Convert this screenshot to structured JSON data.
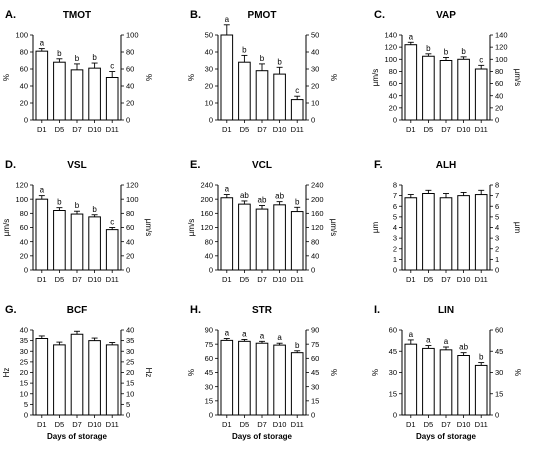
{
  "chart_data": [
    {
      "panel": "A.",
      "title": "TMOT",
      "type": "bar",
      "categories": [
        "D1",
        "D5",
        "D7",
        "D10",
        "D11"
      ],
      "values": [
        81,
        68,
        59,
        61,
        50
      ],
      "errors": [
        3,
        4,
        7,
        6,
        7
      ],
      "letters": [
        "a",
        "b",
        "b",
        "b",
        "c"
      ],
      "ylabel": "%",
      "ylabel_right": "%",
      "ylim": [
        0,
        100
      ],
      "yticks": [
        0,
        20,
        40,
        60,
        80,
        100
      ],
      "xlabel": ""
    },
    {
      "panel": "B.",
      "title": "PMOT",
      "type": "bar",
      "categories": [
        "D1",
        "D5",
        "D7",
        "D10",
        "D11"
      ],
      "values": [
        50,
        34,
        29,
        27,
        12
      ],
      "errors": [
        6,
        4,
        4,
        4,
        2
      ],
      "letters": [
        "a",
        "b",
        "b",
        "b",
        "c"
      ],
      "ylabel": "%",
      "ylabel_right": "%",
      "ylim": [
        0,
        50
      ],
      "yticks": [
        0,
        10,
        20,
        30,
        40,
        50
      ],
      "xlabel": ""
    },
    {
      "panel": "C.",
      "title": "VAP",
      "type": "bar",
      "categories": [
        "D1",
        "D5",
        "D7",
        "D10",
        "D11"
      ],
      "values": [
        124,
        105,
        98,
        100,
        84
      ],
      "errors": [
        4,
        4,
        5,
        4,
        6
      ],
      "letters": [
        "a",
        "b",
        "b",
        "b",
        "c"
      ],
      "ylabel": "µm/s",
      "ylabel_right": "µm/s",
      "ylim": [
        0,
        140
      ],
      "yticks": [
        0,
        20,
        40,
        60,
        80,
        100,
        120,
        140
      ],
      "xlabel": ""
    },
    {
      "panel": "D.",
      "title": "VSL",
      "type": "bar",
      "categories": [
        "D1",
        "D5",
        "D7",
        "D10",
        "D11"
      ],
      "values": [
        100,
        84,
        79,
        75,
        57
      ],
      "errors": [
        5,
        4,
        4,
        3,
        3
      ],
      "letters": [
        "a",
        "b",
        "b",
        "b",
        "c"
      ],
      "ylabel": "µm/s",
      "ylabel_right": "µm/s",
      "ylim": [
        0,
        120
      ],
      "yticks": [
        0,
        20,
        40,
        60,
        80,
        100,
        120
      ],
      "xlabel": ""
    },
    {
      "panel": "E.",
      "title": "VCL",
      "type": "bar",
      "categories": [
        "D1",
        "D5",
        "D7",
        "D10",
        "D11"
      ],
      "values": [
        204,
        186,
        172,
        184,
        165
      ],
      "errors": [
        9,
        9,
        10,
        9,
        12
      ],
      "letters": [
        "a",
        "ab",
        "ab",
        "ab",
        "b"
      ],
      "ylabel": "µm/s",
      "ylabel_right": "µm/s",
      "ylim": [
        0,
        240
      ],
      "yticks": [
        0,
        40,
        80,
        120,
        160,
        200,
        240
      ],
      "xlabel": ""
    },
    {
      "panel": "F.",
      "title": "ALH",
      "type": "bar",
      "categories": [
        "D1",
        "D5",
        "D7",
        "D10",
        "D11"
      ],
      "values": [
        6.8,
        7.2,
        6.8,
        7.0,
        7.1
      ],
      "errors": [
        0.3,
        0.3,
        0.4,
        0.3,
        0.4
      ],
      "letters": [
        "",
        "",
        "",
        "",
        ""
      ],
      "ylabel": "µm",
      "ylabel_right": "µm",
      "ylim": [
        0,
        8
      ],
      "yticks": [
        0,
        1,
        2,
        3,
        4,
        5,
        6,
        7,
        8
      ],
      "xlabel": ""
    },
    {
      "panel": "G.",
      "title": "BCF",
      "type": "bar",
      "categories": [
        "D1",
        "D5",
        "D7",
        "D10",
        "D11"
      ],
      "values": [
        36,
        33,
        38,
        35,
        33
      ],
      "errors": [
        1.2,
        1.3,
        1.4,
        1.2,
        1.1
      ],
      "letters": [
        "",
        "",
        "",
        "",
        ""
      ],
      "ylabel": "Hz",
      "ylabel_right": "Hz",
      "ylim": [
        0,
        40
      ],
      "yticks": [
        0,
        5,
        10,
        15,
        20,
        25,
        30,
        35,
        40
      ],
      "xlabel": "Days of storage"
    },
    {
      "panel": "H.",
      "title": "STR",
      "type": "bar",
      "categories": [
        "D1",
        "D5",
        "D7",
        "D10",
        "D11"
      ],
      "values": [
        79,
        78,
        76,
        74,
        66
      ],
      "errors": [
        2,
        2,
        2,
        2,
        2
      ],
      "letters": [
        "a",
        "a",
        "a",
        "a",
        "b"
      ],
      "ylabel": "%",
      "ylabel_right": "%",
      "ylim": [
        0,
        90
      ],
      "yticks": [
        0,
        15,
        30,
        45,
        60,
        75,
        90
      ],
      "xlabel": "Days of storage"
    },
    {
      "panel": "I.",
      "title": "LIN",
      "type": "bar",
      "categories": [
        "D1",
        "D5",
        "D7",
        "D10",
        "D11"
      ],
      "values": [
        50,
        47,
        46,
        42,
        35
      ],
      "errors": [
        3,
        2,
        2,
        2,
        2
      ],
      "letters": [
        "a",
        "a",
        "a",
        "ab",
        "b"
      ],
      "ylabel": "%",
      "ylabel_right": "%",
      "ylim": [
        0,
        60
      ],
      "yticks": [
        0,
        15,
        30,
        45,
        60
      ],
      "xlabel": "Days of storage"
    }
  ]
}
